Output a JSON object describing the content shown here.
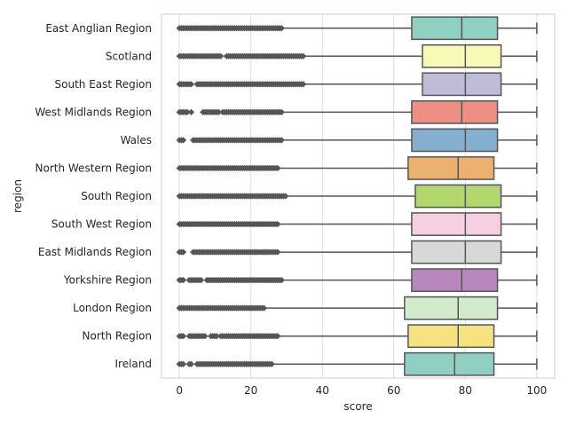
{
  "chart_data": {
    "type": "box",
    "orientation": "horizontal",
    "title": "",
    "xlabel": "score",
    "ylabel": "region",
    "xlim": [
      -5,
      105
    ],
    "xticks": [
      0,
      20,
      40,
      60,
      80,
      100
    ],
    "grid": true,
    "categories": [
      "East Anglian Region",
      "Scotland",
      "South East Region",
      "West Midlands Region",
      "Wales",
      "North Western Region",
      "South Region",
      "South West Region",
      "East Midlands Region",
      "Yorkshire Region",
      "London Region",
      "North Region",
      "Ireland"
    ],
    "boxes": [
      {
        "q1": 65,
        "median": 79,
        "q3": 89,
        "whisker_low": 29,
        "whisker_high": 100,
        "outliers": [
          0,
          29
        ],
        "outlier_gaps": [],
        "color": "#8fd0c2"
      },
      {
        "q1": 68,
        "median": 80,
        "q3": 90,
        "whisker_low": 35,
        "whisker_high": 100,
        "outliers": [
          0,
          35
        ],
        "outlier_gaps": [
          [
            12,
            13
          ]
        ],
        "color": "#f8f8b7"
      },
      {
        "q1": 68,
        "median": 80,
        "q3": 90,
        "whisker_low": 35,
        "whisker_high": 100,
        "outliers": [
          0,
          35
        ],
        "outlier_gaps": [
          [
            3.5,
            4.5
          ]
        ],
        "color": "#bfbbd8"
      },
      {
        "q1": 65,
        "median": 79,
        "q3": 89,
        "whisker_low": 29,
        "whisker_high": 100,
        "outliers": [
          0,
          29
        ],
        "outlier_gaps": [
          [
            2.5,
            3
          ],
          [
            3.5,
            6.5
          ],
          [
            11.5,
            12
          ]
        ],
        "color": "#ed8f83"
      },
      {
        "q1": 65,
        "median": 80,
        "q3": 89,
        "whisker_low": 29,
        "whisker_high": 100,
        "outliers": [
          0,
          29
        ],
        "outlier_gaps": [
          [
            1.5,
            3.5
          ]
        ],
        "color": "#85aecf"
      },
      {
        "q1": 64,
        "median": 78,
        "q3": 88,
        "whisker_low": 28,
        "whisker_high": 100,
        "outliers": [
          0,
          28
        ],
        "outlier_gaps": [],
        "color": "#edb16e"
      },
      {
        "q1": 66,
        "median": 80,
        "q3": 90,
        "whisker_low": 30,
        "whisker_high": 100,
        "outliers": [
          0,
          30
        ],
        "outlier_gaps": [],
        "color": "#b3d76f"
      },
      {
        "q1": 65,
        "median": 80,
        "q3": 90,
        "whisker_low": 28,
        "whisker_high": 100,
        "outliers": [
          0,
          28
        ],
        "outlier_gaps": [],
        "color": "#f6cfe2"
      },
      {
        "q1": 65,
        "median": 80,
        "q3": 90,
        "whisker_low": 28,
        "whisker_high": 100,
        "outliers": [
          0,
          28
        ],
        "outlier_gaps": [
          [
            1.5,
            3.5
          ]
        ],
        "color": "#d8d8d8"
      },
      {
        "q1": 65,
        "median": 79,
        "q3": 89,
        "whisker_low": 29,
        "whisker_high": 100,
        "outliers": [
          0,
          29
        ],
        "outlier_gaps": [
          [
            1.5,
            2.5
          ],
          [
            6.5,
            7.5
          ]
        ],
        "color": "#b887bd"
      },
      {
        "q1": 63,
        "median": 78,
        "q3": 89,
        "whisker_low": 24,
        "whisker_high": 100,
        "outliers": [
          0,
          24
        ],
        "outlier_gaps": [],
        "color": "#d2eccb"
      },
      {
        "q1": 64,
        "median": 78,
        "q3": 88,
        "whisker_low": 28,
        "whisker_high": 100,
        "outliers": [
          0,
          28
        ],
        "outlier_gaps": [
          [
            1.5,
            2.5
          ],
          [
            7.5,
            8.5
          ],
          [
            10.5,
            11.5
          ]
        ],
        "color": "#f6e37f"
      },
      {
        "q1": 63,
        "median": 77,
        "q3": 88,
        "whisker_low": 26,
        "whisker_high": 100,
        "outliers": [
          0,
          26
        ],
        "outlier_gaps": [
          [
            1.5,
            2.5
          ],
          [
            3.5,
            4.5
          ]
        ],
        "color": "#8fd0c2"
      }
    ]
  }
}
